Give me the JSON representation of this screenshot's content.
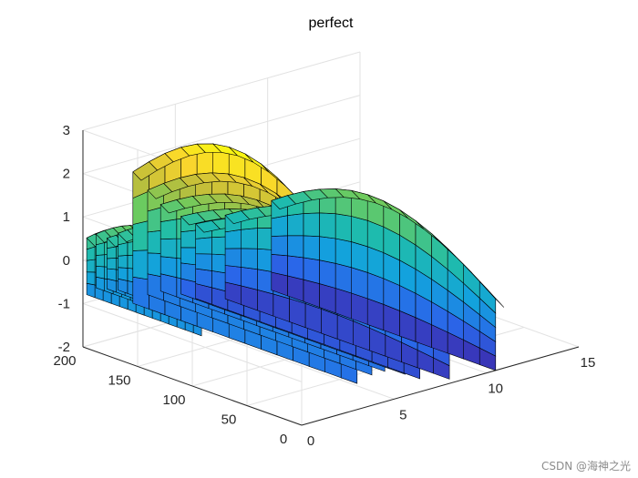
{
  "chart_data": {
    "type": "surface3d",
    "title": "perfect",
    "xlabel": "",
    "ylabel": "",
    "zlabel": "",
    "xlim": [
      0,
      15
    ],
    "ylim": [
      0,
      200
    ],
    "zlim": [
      -2,
      3
    ],
    "xticks": [
      "0",
      "5",
      "10",
      "15"
    ],
    "yticks": [
      "0",
      "50",
      "100",
      "150",
      "200"
    ],
    "zticks": [
      "-2",
      "-1",
      "0",
      "1",
      "2",
      "3"
    ],
    "grid": true,
    "colormap": "parula",
    "colormap_colors": [
      "#3e26a8",
      "#2a66e9",
      "#13a2dd",
      "#1fbdaa",
      "#6ccb5f",
      "#c0bd3a",
      "#f9d52d",
      "#f9fb0e"
    ],
    "edge_color": "#000000",
    "sheets": [
      {
        "x": 0.5,
        "y_range": [
          100,
          205
        ],
        "z_top": 1.0,
        "z_bottom": -0.9
      },
      {
        "x": 1.0,
        "y_range": [
          95,
          205
        ],
        "z_top": 1.0,
        "z_bottom": -0.8
      },
      {
        "x": 1.6,
        "y_range": [
          90,
          205
        ],
        "z_top": 0.8,
        "z_bottom": -0.9
      },
      {
        "x": 2.2,
        "y_range": [
          85,
          205
        ],
        "z_top": 0.9,
        "z_bottom": -1.0
      },
      {
        "x": 3.0,
        "y_range": [
          0,
          205
        ],
        "z_top": 3.0,
        "z_bottom": -1.4
      },
      {
        "x": 3.8,
        "y_range": [
          0,
          205
        ],
        "z_top": 2.2,
        "z_bottom": -1.3
      },
      {
        "x": 4.5,
        "y_range": [
          0,
          205
        ],
        "z_top": 1.6,
        "z_bottom": -1.3
      },
      {
        "x": 5.6,
        "y_range": [
          0,
          205
        ],
        "z_top": 1.1,
        "z_bottom": -1.5
      },
      {
        "x": 6.4,
        "y_range": [
          0,
          205
        ],
        "z_top": 0.8,
        "z_bottom": -1.7
      },
      {
        "x": 8.0,
        "y_range": [
          0,
          205
        ],
        "z_top": 0.9,
        "z_bottom": -1.9
      },
      {
        "x": 10.5,
        "y_range": [
          0,
          205
        ],
        "z_top": 1.0,
        "z_bottom": -2.0
      }
    ]
  },
  "watermark": "CSDN @海神之光"
}
